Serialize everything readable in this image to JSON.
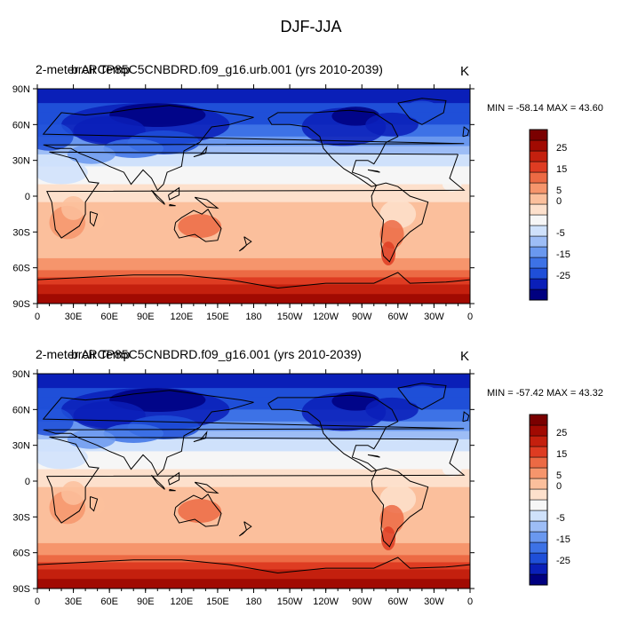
{
  "figure": {
    "title": "DJF-JJA",
    "colors": {
      "palette": [
        "#000080",
        "#0a1fb8",
        "#1f4fd8",
        "#3d72e6",
        "#6a98ef",
        "#9dbdf6",
        "#cfe1fb",
        "#f6f6f6",
        "#fde0cc",
        "#fbbf9c",
        "#f6956c",
        "#ec6a44",
        "#de3c22",
        "#c4200e",
        "#a10a02",
        "#7a0000"
      ]
    },
    "colorbar_labels": [
      "25",
      "15",
      "5",
      "0",
      "-5",
      "-15",
      "-25"
    ],
    "x_ticks": [
      "0",
      "30E",
      "60E",
      "90E",
      "120E",
      "150E",
      "180",
      "150W",
      "120W",
      "90W",
      "60W",
      "30W",
      "0"
    ],
    "y_ticks": [
      "90N",
      "60N",
      "30N",
      "0",
      "30S",
      "60S",
      "90S"
    ],
    "panels": [
      {
        "title_left": "2-meter Air Temp",
        "title_center": "brcRCP85C5CNBDRD.f09_g16.urb.001 (yrs 2010-2039)",
        "units": "K",
        "min_max": "MIN = -58.14 MAX =  43.60"
      },
      {
        "title_left": "2-meter Air Temp",
        "title_center": "brcRCP85C5CNBDRD.f09_g16.001 (yrs 2010-2039)",
        "units": "K",
        "min_max": "MIN = -57.42 MAX =  43.32"
      }
    ]
  }
}
